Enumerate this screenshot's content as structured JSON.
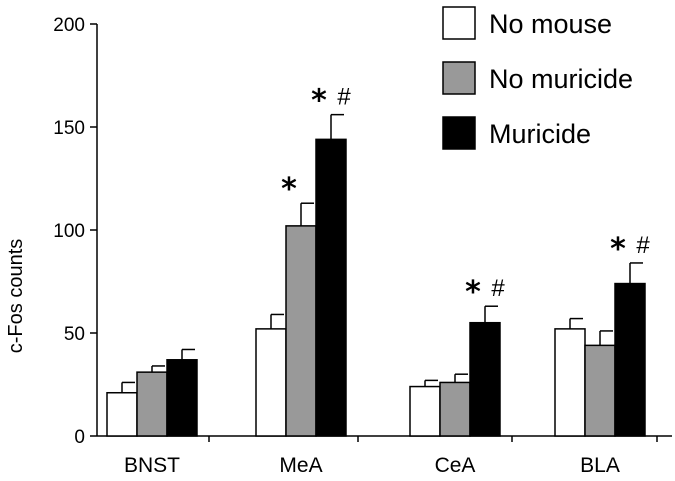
{
  "chart_data": {
    "type": "bar",
    "title": "",
    "xlabel": "",
    "ylabel": "c-Fos counts",
    "ylim": [
      0,
      200
    ],
    "yticks": [
      0,
      50,
      100,
      150,
      200
    ],
    "categories": [
      "BNST",
      "MeA",
      "CeA",
      "BLA"
    ],
    "legend_position": "top-right",
    "grid": false,
    "series": [
      {
        "name": "No mouse",
        "color": "#ffffff",
        "values": [
          21,
          52,
          24,
          52
        ],
        "errors": [
          5,
          7,
          3,
          5
        ],
        "annotations": [
          "",
          "",
          "",
          ""
        ]
      },
      {
        "name": "No muricide",
        "color": "#999999",
        "values": [
          31,
          102,
          26,
          44
        ],
        "errors": [
          3,
          11,
          4,
          7
        ],
        "annotations": [
          "",
          "*",
          "",
          ""
        ]
      },
      {
        "name": "Muricide",
        "color": "#000000",
        "values": [
          37,
          144,
          55,
          74
        ],
        "errors": [
          5,
          12,
          8,
          10
        ],
        "annotations": [
          "",
          "* #",
          "* #",
          "* #"
        ]
      }
    ]
  }
}
